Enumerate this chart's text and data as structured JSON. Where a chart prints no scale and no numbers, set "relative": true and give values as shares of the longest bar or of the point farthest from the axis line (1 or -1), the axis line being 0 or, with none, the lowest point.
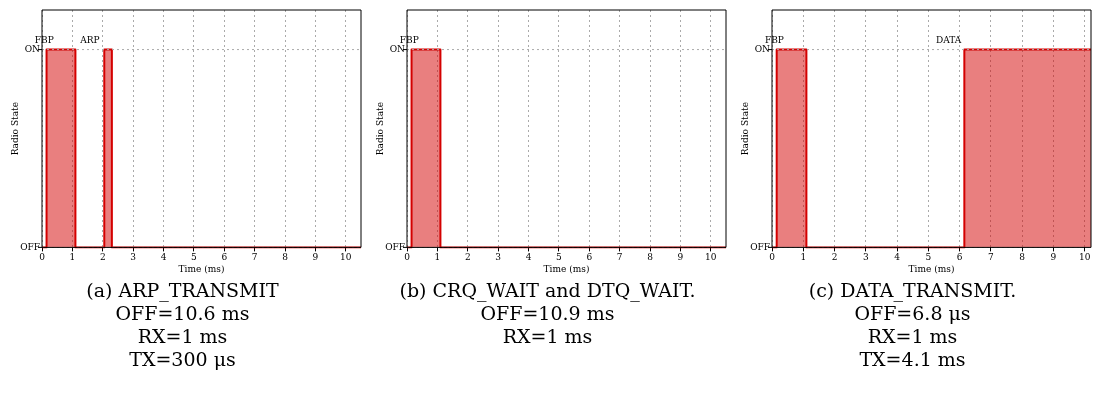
{
  "chart_data": [
    {
      "type": "step",
      "title": "(a) ARP_TRANSMIT",
      "subtitle": "OFF=10.6 ms\nRX=1 ms\nTX=300 μs",
      "xlabel": "Time (ms)",
      "ylabel": "Radio State",
      "relative": true,
      "x": [
        0,
        0.15,
        1.1,
        2.05,
        2.3,
        10.5
      ],
      "series": [
        {
          "color": "#d40000",
          "values": [
            0,
            1,
            0,
            1,
            0,
            0
          ]
        }
      ],
      "xlim": [
        0,
        10.5
      ],
      "xticks": [
        0,
        1,
        2,
        3,
        4,
        5,
        6,
        7,
        8,
        9,
        10
      ],
      "grid": "x",
      "legend": false,
      "ref_lines": [
        {
          "axis": "y",
          "value": 0,
          "label": "OFF"
        },
        {
          "axis": "y",
          "value": 1,
          "label": "ON"
        }
      ],
      "annotations": [
        "FBP",
        "ARP"
      ]
    },
    {
      "type": "step",
      "title": "(b) CRQ_WAIT and DTQ_WAIT.",
      "subtitle": "OFF=10.9 ms\nRX=1 ms",
      "xlabel": "Time (ms)",
      "ylabel": "Radio State",
      "relative": true,
      "x": [
        0,
        0.15,
        1.1,
        10.5
      ],
      "series": [
        {
          "color": "#d40000",
          "values": [
            0,
            1,
            0,
            0
          ]
        }
      ],
      "xlim": [
        0,
        10.5
      ],
      "xticks": [
        0,
        1,
        2,
        3,
        4,
        5,
        6,
        7,
        8,
        9,
        10
      ],
      "grid": "x",
      "legend": false,
      "ref_lines": [
        {
          "axis": "y",
          "value": 0,
          "label": "OFF"
        },
        {
          "axis": "y",
          "value": 1,
          "label": "ON"
        }
      ],
      "annotations": [
        "FBP"
      ]
    },
    {
      "type": "step",
      "title": "(c) DATA_TRANSMIT.",
      "subtitle": "OFF=6.8 μs\nRX=1 ms\nTX=4.1 ms",
      "xlabel": "Time (ms)",
      "ylabel": "Radio State",
      "relative": true,
      "x": [
        0,
        0.15,
        1.1,
        6.15,
        10.2
      ],
      "series": [
        {
          "color": "#d40000",
          "values": [
            0,
            1,
            0,
            1,
            1
          ]
        }
      ],
      "xlim": [
        0,
        10.2
      ],
      "xticks": [
        0,
        1,
        2,
        3,
        4,
        5,
        6,
        7,
        8,
        9,
        10
      ],
      "grid": "x",
      "legend": false,
      "ref_lines": [
        {
          "axis": "y",
          "value": 0,
          "label": "OFF"
        },
        {
          "axis": "y",
          "value": 1,
          "label": "ON"
        }
      ],
      "annotations": [
        "FBP",
        "DATA"
      ]
    }
  ]
}
